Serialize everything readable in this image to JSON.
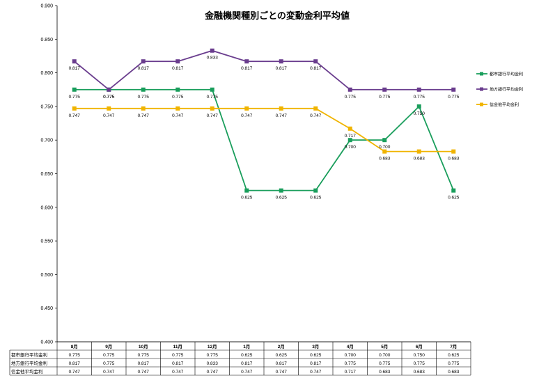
{
  "chart_data": {
    "type": "line",
    "title": "金融機関種別ごとの変動金利平均値",
    "categories": [
      "8月",
      "9月",
      "10月",
      "11月",
      "12月",
      "1月",
      "2月",
      "3月",
      "4月",
      "5月",
      "6月",
      "7月"
    ],
    "ylim": [
      0.4,
      0.9
    ],
    "yticks": [
      "0.400",
      "0.450",
      "0.500",
      "0.550",
      "0.600",
      "0.650",
      "0.700",
      "0.750",
      "0.800",
      "0.850",
      "0.900"
    ],
    "grid": false,
    "legend_position": "right",
    "series": [
      {
        "name": "都市銀行平均金利",
        "color": "#1a9e5c",
        "marker": "square",
        "values": [
          0.775,
          0.775,
          0.775,
          0.775,
          0.775,
          0.625,
          0.625,
          0.625,
          0.7,
          0.7,
          0.75,
          0.625
        ],
        "labels": [
          "0.775",
          "0.775",
          "0.775",
          "0.775",
          "0.775",
          "0.625",
          "0.625",
          "0.625",
          "0.700",
          "0.700",
          "0.750",
          "0.625"
        ]
      },
      {
        "name": "地方銀行平均金利",
        "color": "#6a3d8e",
        "marker": "square",
        "values": [
          0.817,
          0.775,
          0.817,
          0.817,
          0.833,
          0.817,
          0.817,
          0.817,
          0.775,
          0.775,
          0.775,
          0.775
        ],
        "labels": [
          "0.817",
          "0.775",
          "0.817",
          "0.817",
          "0.833",
          "0.817",
          "0.817",
          "0.817",
          "0.775",
          "0.775",
          "0.775",
          "0.775"
        ]
      },
      {
        "name": "信金他平均金利",
        "color": "#f0b400",
        "marker": "square",
        "values": [
          0.747,
          0.747,
          0.747,
          0.747,
          0.747,
          0.747,
          0.747,
          0.747,
          0.717,
          0.683,
          0.683,
          0.683
        ],
        "labels": [
          "0.747",
          "0.747",
          "0.747",
          "0.747",
          "0.747",
          "0.747",
          "0.747",
          "0.747",
          "0.717",
          "0.683",
          "0.683",
          "0.683"
        ]
      }
    ],
    "table": {
      "rows": [
        {
          "label": "都市銀行平均金利",
          "cells": [
            "0.775",
            "0.775",
            "0.775",
            "0.775",
            "0.775",
            "0.625",
            "0.625",
            "0.625",
            "0.700",
            "0.700",
            "0.750",
            "0.625"
          ]
        },
        {
          "label": "地方銀行平均金利",
          "cells": [
            "0.817",
            "0.775",
            "0.817",
            "0.817",
            "0.833",
            "0.817",
            "0.817",
            "0.817",
            "0.775",
            "0.775",
            "0.775",
            "0.775"
          ]
        },
        {
          "label": "信金他平均金利",
          "cells": [
            "0.747",
            "0.747",
            "0.747",
            "0.747",
            "0.747",
            "0.747",
            "0.747",
            "0.747",
            "0.717",
            "0.683",
            "0.683",
            "0.683"
          ]
        }
      ]
    }
  }
}
